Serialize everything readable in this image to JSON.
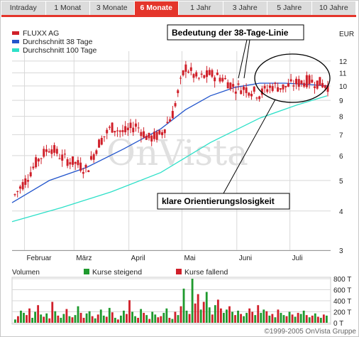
{
  "tabs": [
    {
      "label": "Intraday",
      "active": false
    },
    {
      "label": "1 Monat",
      "active": false
    },
    {
      "label": "3 Monate",
      "active": false
    },
    {
      "label": "6 Monate",
      "active": true
    },
    {
      "label": "1 Jahr",
      "active": false
    },
    {
      "label": "3 Jahre",
      "active": false
    },
    {
      "label": "5 Jahre",
      "active": false
    },
    {
      "label": "10 Jahre",
      "active": false
    }
  ],
  "colors": {
    "accent": "#e4352b",
    "price": "#d0202a",
    "ma38": "#2255cc",
    "ma100": "#2de0c8",
    "vol_up": "#1f9a2e",
    "vol_down": "#d0202a",
    "grid": "#d8d8d8"
  },
  "watermark": "OnVista",
  "copyright": "©1999-2005 OnVista Gruppe",
  "chart_data": [
    {
      "type": "line",
      "title": "",
      "unit_label": "EUR",
      "log_scale": true,
      "ylim": [
        3,
        12.5
      ],
      "y_ticks": [
        3,
        4,
        5,
        6,
        7,
        8,
        9,
        10,
        11,
        12
      ],
      "x_ticks": [
        {
          "label": "Februar",
          "date": "2005-02-01"
        },
        {
          "label": "März",
          "date": "2005-03-01"
        },
        {
          "label": "April",
          "date": "2005-04-01"
        },
        {
          "label": "Mai",
          "date": "2005-05-01"
        },
        {
          "label": "Juni",
          "date": "2005-06-01"
        },
        {
          "label": "Juli",
          "date": "2005-07-01"
        }
      ],
      "grid": true,
      "legend_position": "top-left",
      "series": [
        {
          "name": "FLUXX AG",
          "style": "candlestick",
          "color": "#d0202a",
          "x": [
            "2005-01-25",
            "2005-01-31",
            "2005-02-07",
            "2005-02-14",
            "2005-02-21",
            "2005-02-28",
            "2005-03-07",
            "2005-03-14",
            "2005-03-21",
            "2005-03-28",
            "2005-04-04",
            "2005-04-11",
            "2005-04-18",
            "2005-04-25",
            "2005-05-02",
            "2005-05-09",
            "2005-05-16",
            "2005-05-23",
            "2005-05-30",
            "2005-06-06",
            "2005-06-13",
            "2005-06-20",
            "2005-06-27",
            "2005-07-04",
            "2005-07-11",
            "2005-07-18",
            "2005-07-22"
          ],
          "values": [
            4.5,
            5.0,
            5.8,
            6.4,
            5.9,
            5.7,
            5.4,
            6.6,
            7.4,
            7.1,
            7.5,
            6.8,
            7.0,
            8.2,
            11.5,
            10.5,
            10.9,
            10.6,
            9.9,
            9.8,
            9.4,
            10.0,
            9.9,
            10.2,
            10.4,
            10.2,
            10.0
          ]
        },
        {
          "name": "Durchschnitt 38 Tage",
          "style": "line",
          "color": "#2255cc",
          "x": [
            "2005-01-25",
            "2005-02-15",
            "2005-03-08",
            "2005-03-29",
            "2005-04-19",
            "2005-05-03",
            "2005-05-17",
            "2005-05-31",
            "2005-06-14",
            "2005-06-28",
            "2005-07-12",
            "2005-07-22"
          ],
          "values": [
            4.25,
            5.0,
            5.5,
            6.3,
            7.3,
            8.4,
            9.3,
            9.9,
            10.2,
            10.2,
            10.1,
            10.0
          ]
        },
        {
          "name": "Durchschnitt 100 Tage",
          "style": "line",
          "color": "#2de0c8",
          "x": [
            "2005-01-25",
            "2005-02-22",
            "2005-03-22",
            "2005-04-19",
            "2005-05-17",
            "2005-06-14",
            "2005-07-05",
            "2005-07-22"
          ],
          "values": [
            3.7,
            4.1,
            4.6,
            5.3,
            6.6,
            7.9,
            8.7,
            9.3
          ]
        }
      ],
      "annotations": [
        {
          "text": "Bedeutung der 38-Tage-Linie"
        },
        {
          "text": "klare Orientierungslosigkeit"
        }
      ]
    },
    {
      "type": "bar",
      "title": "Volumen",
      "y_unit": "T",
      "ylim": [
        0,
        800
      ],
      "y_ticks": [
        0,
        200,
        400,
        600,
        800
      ],
      "y_tick_labels": [
        "0 T",
        "200 T",
        "400 T",
        "600 T",
        "800 T"
      ],
      "legend": [
        {
          "name": "Kurse steigend",
          "color": "#1f9a2e"
        },
        {
          "name": "Kurse fallend",
          "color": "#d0202a"
        }
      ],
      "legend_position": "top",
      "values": [
        60,
        120,
        220,
        180,
        140,
        260,
        90,
        200,
        320,
        150,
        110,
        170,
        80,
        380,
        210,
        130,
        90,
        160,
        250,
        120,
        100,
        140,
        300,
        180,
        90,
        170,
        210,
        120,
        80,
        150,
        240,
        130,
        110,
        270,
        190,
        90,
        60,
        130,
        220,
        160,
        410,
        200,
        120,
        90,
        250,
        180,
        140,
        70,
        200,
        150,
        100,
        120,
        180,
        260,
        90,
        70,
        200,
        140,
        300,
        620,
        220,
        160,
        800,
        350,
        520,
        240,
        380,
        560,
        280,
        150,
        320,
        420,
        260,
        180,
        240,
        300,
        200,
        140,
        220,
        160,
        120,
        180,
        260,
        200,
        140,
        320,
        180,
        240,
        210,
        130,
        160,
        100,
        240,
        180,
        140,
        120,
        200,
        150,
        110,
        180,
        160,
        220,
        140,
        100,
        130,
        170,
        110,
        90,
        150,
        130
      ],
      "directions": [
        "u",
        "d",
        "u",
        "u",
        "d",
        "d",
        "u",
        "u",
        "d",
        "u",
        "d",
        "u",
        "d",
        "d",
        "u",
        "d",
        "u",
        "u",
        "d",
        "u",
        "d",
        "u",
        "u",
        "d",
        "d",
        "u",
        "u",
        "d",
        "u",
        "d",
        "u",
        "u",
        "d",
        "u",
        "d",
        "u",
        "d",
        "u",
        "u",
        "d",
        "d",
        "u",
        "u",
        "d",
        "u",
        "d",
        "u",
        "d",
        "u",
        "u",
        "d",
        "d",
        "u",
        "u",
        "d",
        "u",
        "d",
        "u",
        "d",
        "u",
        "u",
        "d",
        "u",
        "d",
        "d",
        "u",
        "d",
        "u",
        "u",
        "d",
        "u",
        "d",
        "d",
        "u",
        "u",
        "d",
        "u",
        "d",
        "u",
        "d",
        "u",
        "u",
        "d",
        "d",
        "u",
        "d",
        "u",
        "u",
        "d",
        "u",
        "d",
        "u",
        "d",
        "u",
        "u",
        "d",
        "u",
        "d",
        "u",
        "d",
        "u",
        "u",
        "d",
        "u",
        "d",
        "u",
        "d",
        "u",
        "d",
        "u"
      ]
    }
  ]
}
